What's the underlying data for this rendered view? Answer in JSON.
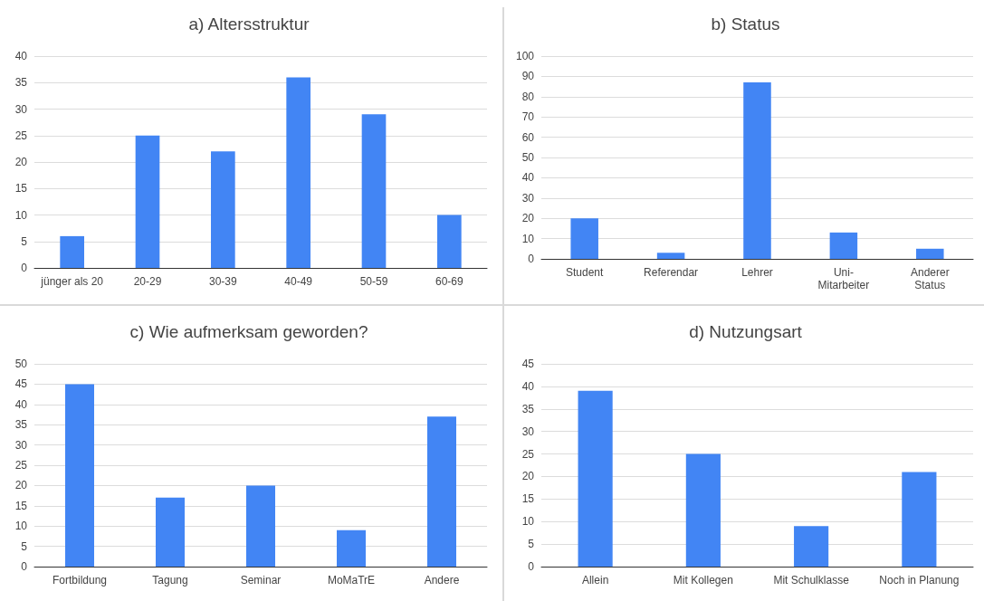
{
  "chart_data": [
    {
      "type": "bar",
      "title": "a) Altersstruktur",
      "categories": [
        "jünger als 20",
        "20-29",
        "30-39",
        "40-49",
        "50-59",
        "60-69"
      ],
      "values": [
        6,
        25,
        22,
        36,
        29,
        10
      ],
      "color": "#4285f4",
      "ylim": [
        0,
        40
      ],
      "yticks": [
        0,
        5,
        10,
        15,
        20,
        25,
        30,
        35,
        40
      ],
      "grid": "y"
    },
    {
      "type": "bar",
      "title": "b) Status",
      "categories": [
        "Student",
        "Referendar",
        "Lehrer",
        "Uni-\nMitarbeiter",
        "Anderer\nStatus"
      ],
      "values": [
        20,
        3,
        87,
        13,
        5
      ],
      "color": "#4285f4",
      "ylim": [
        0,
        100
      ],
      "yticks": [
        0,
        10,
        20,
        30,
        40,
        50,
        60,
        70,
        80,
        90,
        100
      ],
      "grid": "y"
    },
    {
      "type": "bar",
      "title": "c) Wie aufmerksam geworden?",
      "categories": [
        "Fortbildung",
        "Tagung",
        "Seminar",
        "MoMaTrE",
        "Andere"
      ],
      "values": [
        45,
        17,
        20,
        9,
        37
      ],
      "color": "#4285f4",
      "ylim": [
        0,
        50
      ],
      "yticks": [
        0,
        5,
        10,
        15,
        20,
        25,
        30,
        35,
        40,
        45,
        50
      ],
      "grid": "y"
    },
    {
      "type": "bar",
      "title": "d) Nutzungsart",
      "categories": [
        "Allein",
        "Mit Kollegen",
        "Mit Schulklasse",
        "Noch in Planung"
      ],
      "values": [
        39,
        25,
        9,
        21
      ],
      "color": "#4285f4",
      "ylim": [
        0,
        45
      ],
      "yticks": [
        0,
        5,
        10,
        15,
        20,
        25,
        30,
        35,
        40,
        45
      ],
      "grid": "y"
    }
  ]
}
